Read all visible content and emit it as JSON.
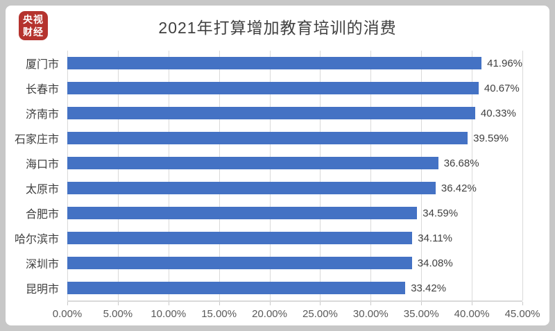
{
  "frame": {
    "background_color": "#c7c7c7",
    "card_color": "#ffffff"
  },
  "logo": {
    "line1": "央视",
    "line2": "财经",
    "background": "#b5332e",
    "text_color": "#ffffff"
  },
  "title": "2021年打算增加教育培训的消费",
  "chart_data": {
    "type": "bar",
    "orientation": "horizontal",
    "title": "2021年打算增加教育培训的消费",
    "categories": [
      "厦门市",
      "长春市",
      "济南市",
      "石家庄市",
      "海口市",
      "太原市",
      "合肥市",
      "哈尔滨市",
      "深圳市",
      "昆明市"
    ],
    "values": [
      41.96,
      40.67,
      40.33,
      39.59,
      36.68,
      36.42,
      34.59,
      34.11,
      34.08,
      33.42
    ],
    "value_labels": [
      "41.96%",
      "40.67%",
      "40.33%",
      "39.59%",
      "36.68%",
      "36.42%",
      "34.59%",
      "34.11%",
      "34.08%",
      "33.42%"
    ],
    "x_ticks": [
      "0.00%",
      "5.00%",
      "10.00%",
      "15.00%",
      "20.00%",
      "25.00%",
      "30.00%",
      "35.00%",
      "40.00%",
      "45.00%"
    ],
    "xlim": [
      0,
      45
    ],
    "xlabel": "",
    "ylabel": "",
    "bar_color": "#4472c4",
    "gridline_color": "#d9d9d9",
    "axis_label_color": "#595959",
    "data_label_color": "#404040",
    "grid": "vertical",
    "legend_position": "none"
  }
}
